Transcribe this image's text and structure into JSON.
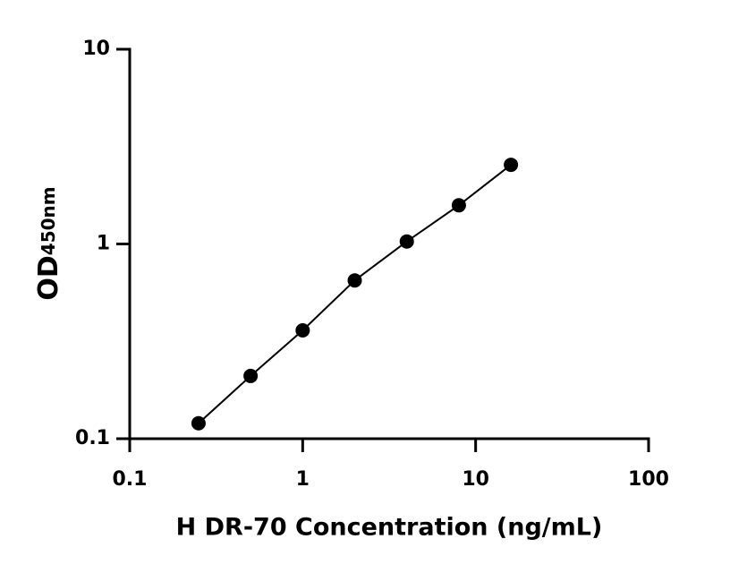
{
  "chart_data": {
    "type": "scatter",
    "x_label": "H DR-70 Concentration (ng/mL)",
    "y_label": "OD",
    "y_label_subscript": "450nm",
    "x": [
      0.25,
      0.5,
      1,
      2,
      4,
      8,
      16
    ],
    "series": [
      {
        "values": [
          0.12,
          0.21,
          0.36,
          0.65,
          1.03,
          1.58,
          2.55
        ],
        "color": "#000000"
      }
    ],
    "xlim": [
      0.1,
      100
    ],
    "ylim": [
      0.1,
      10
    ],
    "xticks": [
      0.1,
      1,
      10,
      100
    ],
    "yticks": [
      0.1,
      1,
      10
    ],
    "xscale": "log",
    "yscale": "log",
    "fit_line": true
  }
}
